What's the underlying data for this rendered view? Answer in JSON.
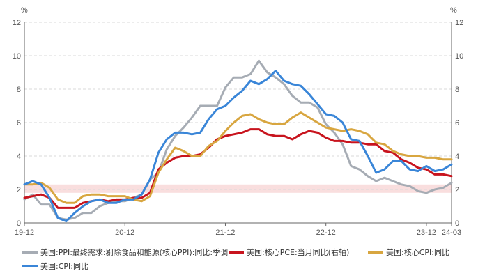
{
  "chart_data": {
    "type": "line",
    "title": "",
    "y_unit_left": "%",
    "y_unit_right": "%",
    "ylim": [
      0,
      12
    ],
    "yticks": [
      0,
      2,
      4,
      6,
      8,
      10,
      12
    ],
    "x_tick_labels": [
      "19-12",
      "20-12",
      "21-12",
      "22-12",
      "23-12",
      "24-03"
    ],
    "x_range": [
      "2019-12",
      "2024-03"
    ],
    "reference_band": {
      "y_from": 1.8,
      "y_to": 2.3,
      "color": "#f9dede"
    },
    "grid": "horizontal-dashed",
    "legend_position": "bottom",
    "months": [
      "2019-12",
      "2020-01",
      "2020-02",
      "2020-03",
      "2020-04",
      "2020-05",
      "2020-06",
      "2020-07",
      "2020-08",
      "2020-09",
      "2020-10",
      "2020-11",
      "2020-12",
      "2021-01",
      "2021-02",
      "2021-03",
      "2021-04",
      "2021-05",
      "2021-06",
      "2021-07",
      "2021-08",
      "2021-09",
      "2021-10",
      "2021-11",
      "2021-12",
      "2022-01",
      "2022-02",
      "2022-03",
      "2022-04",
      "2022-05",
      "2022-06",
      "2022-07",
      "2022-08",
      "2022-09",
      "2022-10",
      "2022-11",
      "2022-12",
      "2023-01",
      "2023-02",
      "2023-03",
      "2023-04",
      "2023-05",
      "2023-06",
      "2023-07",
      "2023-08",
      "2023-09",
      "2023-10",
      "2023-11",
      "2023-12",
      "2024-01",
      "2024-02",
      "2024-03"
    ],
    "series": [
      {
        "name": "美国:PPI:最终需求:剔除食品和能源(核心PPI):同比:季调",
        "color": "#a6acb4",
        "axis": "left",
        "values": [
          1.4,
          1.7,
          1.1,
          1.1,
          0.3,
          0.2,
          0.3,
          0.6,
          0.6,
          1.0,
          1.2,
          1.3,
          1.3,
          1.5,
          1.7,
          2.6,
          3.0,
          4.4,
          5.2,
          5.7,
          6.3,
          7.0,
          7.0,
          7.0,
          8.1,
          8.7,
          8.7,
          8.9,
          9.7,
          9.0,
          8.7,
          8.3,
          7.6,
          7.2,
          7.2,
          6.9,
          5.9,
          5.4,
          4.7,
          3.4,
          3.2,
          2.8,
          2.5,
          2.7,
          2.5,
          2.3,
          2.2,
          1.9,
          1.8,
          2.0,
          2.1,
          2.4
        ]
      },
      {
        "name": "美国:核心PCE:当月同比(右轴)",
        "color": "#c8141e",
        "axis": "right",
        "values": [
          1.5,
          1.6,
          1.7,
          1.5,
          0.9,
          0.9,
          0.9,
          1.2,
          1.3,
          1.4,
          1.3,
          1.4,
          1.4,
          1.5,
          1.5,
          1.8,
          3.2,
          3.6,
          3.9,
          4.0,
          4.0,
          4.1,
          4.5,
          5.0,
          5.2,
          5.3,
          5.4,
          5.6,
          5.6,
          5.3,
          5.2,
          5.2,
          5.0,
          5.3,
          5.5,
          5.4,
          5.1,
          4.9,
          4.9,
          4.8,
          4.8,
          4.7,
          4.7,
          4.3,
          4.2,
          3.8,
          3.6,
          3.3,
          3.2,
          2.9,
          2.9,
          2.8
        ]
      },
      {
        "name": "美国:核心CPI:同比",
        "color": "#d8a640",
        "axis": "left",
        "values": [
          2.3,
          2.3,
          2.4,
          2.1,
          1.4,
          1.2,
          1.2,
          1.6,
          1.7,
          1.7,
          1.6,
          1.6,
          1.6,
          1.4,
          1.3,
          1.6,
          3.0,
          3.8,
          4.5,
          4.3,
          4.0,
          4.0,
          4.6,
          4.9,
          5.5,
          6.0,
          6.4,
          6.5,
          6.2,
          6.0,
          5.9,
          5.9,
          6.3,
          6.6,
          6.3,
          6.0,
          5.7,
          5.6,
          5.5,
          5.6,
          5.5,
          5.3,
          4.8,
          4.7,
          4.3,
          4.1,
          4.0,
          4.0,
          3.9,
          3.9,
          3.8,
          3.8
        ]
      },
      {
        "name": "美国:CPI:同比",
        "color": "#3a86d8",
        "axis": "left",
        "values": [
          2.3,
          2.5,
          2.3,
          1.5,
          0.3,
          0.1,
          0.6,
          1.0,
          1.3,
          1.4,
          1.2,
          1.2,
          1.4,
          1.4,
          1.7,
          2.6,
          4.2,
          5.0,
          5.4,
          5.4,
          5.3,
          5.4,
          6.2,
          6.8,
          7.0,
          7.5,
          7.9,
          8.5,
          8.3,
          8.6,
          9.1,
          8.5,
          8.3,
          8.2,
          7.7,
          7.1,
          6.5,
          6.4,
          6.0,
          5.0,
          4.9,
          4.0,
          3.0,
          3.2,
          3.7,
          3.7,
          3.2,
          3.1,
          3.4,
          3.1,
          3.2,
          3.5
        ]
      }
    ]
  }
}
